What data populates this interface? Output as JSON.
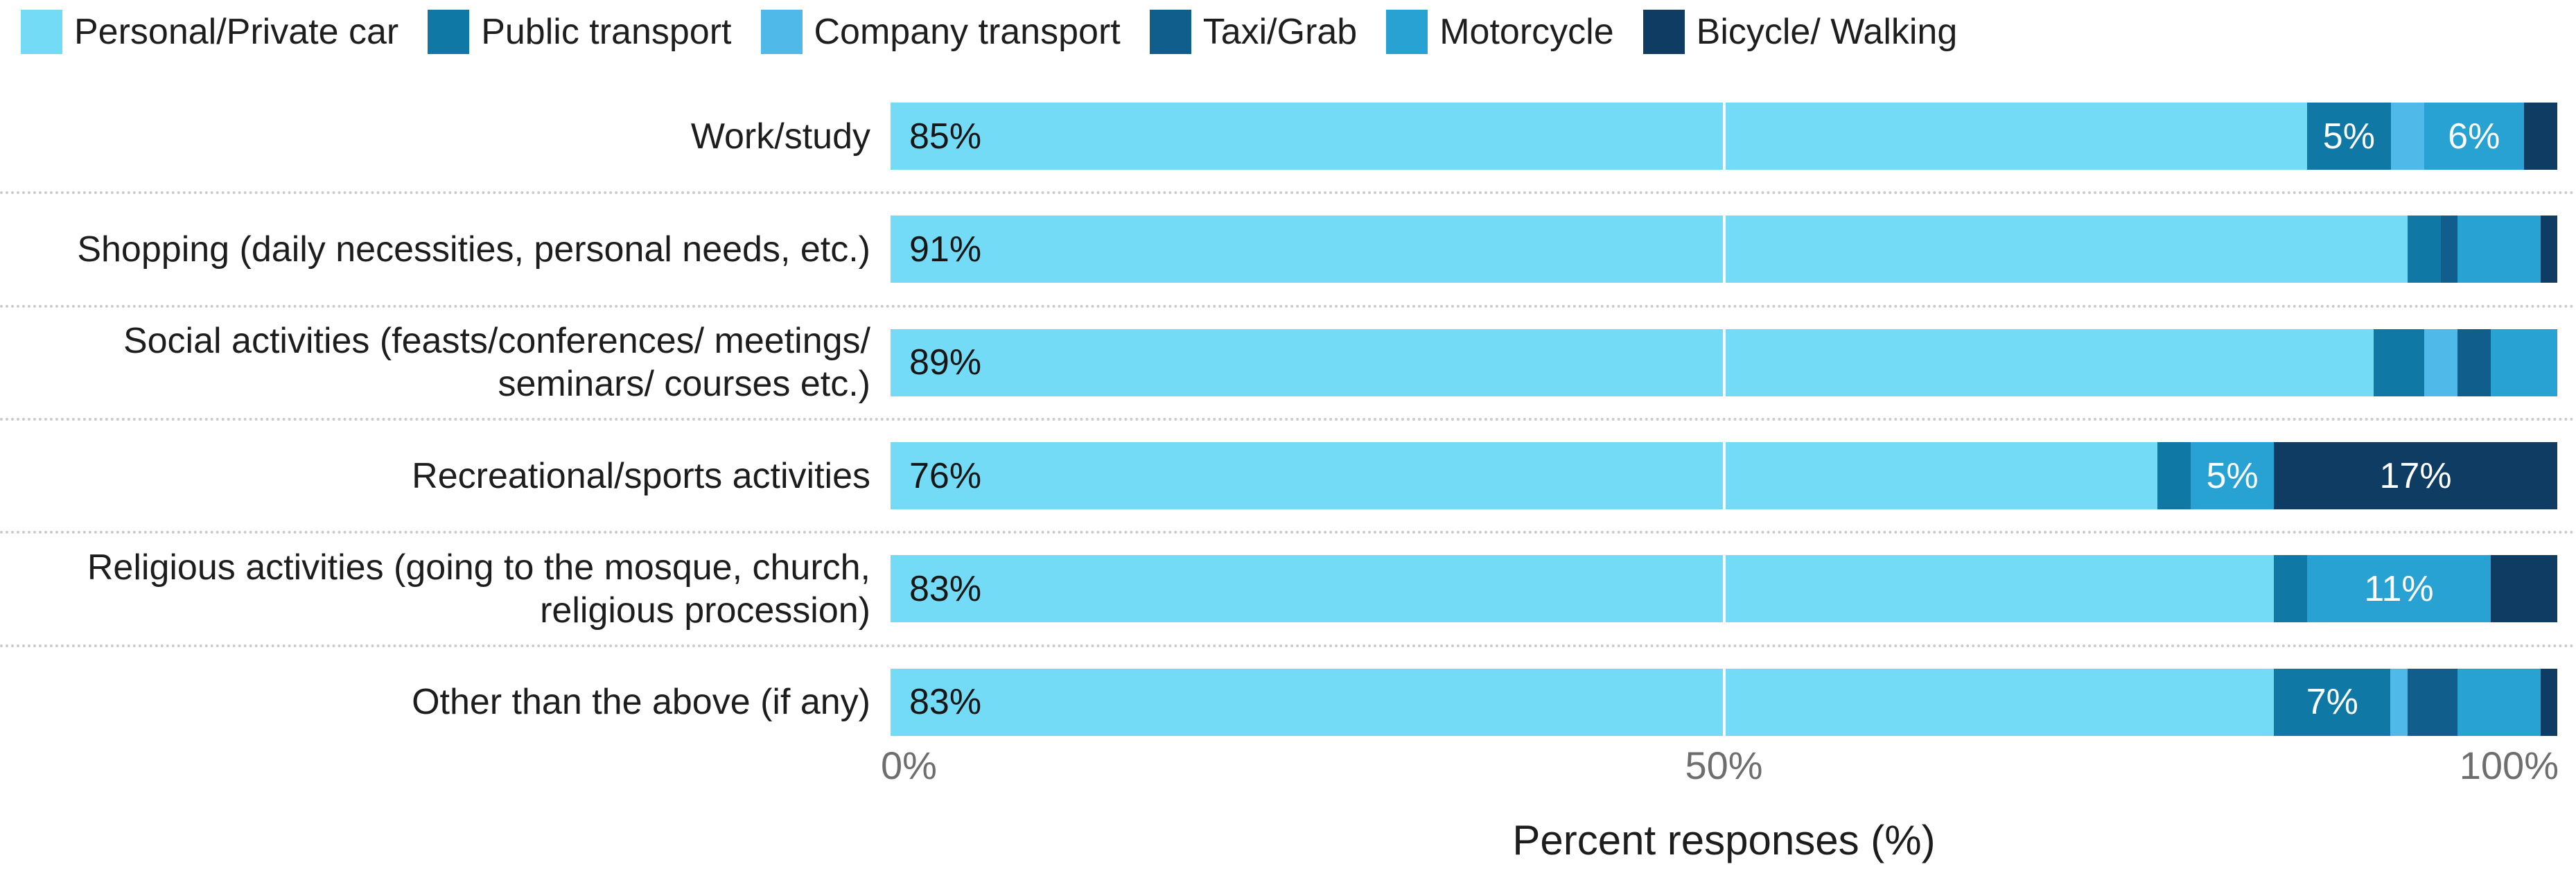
{
  "legend": {
    "position": "top-left",
    "items": [
      {
        "key": "personal",
        "label": "Personal/Private car",
        "color": "#74DBF6"
      },
      {
        "key": "public",
        "label": "Public transport",
        "color": "#1078A4"
      },
      {
        "key": "company",
        "label": "Company transport",
        "color": "#4FB9EA"
      },
      {
        "key": "taxi",
        "label": "Taxi/Grab",
        "color": "#0F5E8C"
      },
      {
        "key": "motorcycle",
        "label": "Motorcycle",
        "color": "#27A2D2"
      },
      {
        "key": "bicycle",
        "label": "Bicycle/ Walking",
        "color": "#0E3C62"
      }
    ]
  },
  "chart_data": {
    "type": "bar",
    "subtype": "horizontal-stacked-100pct",
    "title": "",
    "xlabel": "Percent responses (%)",
    "ylabel": "",
    "xlim": [
      0,
      100
    ],
    "x_ticks": [
      "0%",
      "50%",
      "100%"
    ],
    "grid": "white line at 50% over bars; dotted gray row separators",
    "legend_position": "top",
    "categories": [
      "Work/study",
      "Shopping (daily necessities, personal needs, etc.)",
      "Social activities (feasts/conferences/ meetings/\nseminars/ courses etc.)",
      "Recreational/sports activities",
      "Religious activities (going to the mosque, church,\nreligious procession)",
      "Other than the above (if any)"
    ],
    "series": [
      {
        "key": "personal",
        "name": "Personal/Private car",
        "color": "#74DBF6",
        "values": [
          85,
          91,
          89,
          76,
          83,
          83
        ],
        "labels": [
          "85%",
          "91%",
          "89%",
          "76%",
          "83%",
          "83%"
        ]
      },
      {
        "key": "public",
        "name": "Public transport",
        "color": "#1078A4",
        "values": [
          5,
          2,
          3,
          2,
          2,
          7
        ],
        "labels": [
          "5%",
          null,
          null,
          null,
          null,
          "7%"
        ]
      },
      {
        "key": "company",
        "name": "Company transport",
        "color": "#4FB9EA",
        "values": [
          2,
          0,
          2,
          0,
          0,
          1
        ],
        "labels": [
          null,
          null,
          null,
          null,
          null,
          null
        ]
      },
      {
        "key": "taxi",
        "name": "Taxi/Grab",
        "color": "#0F5E8C",
        "values": [
          0,
          1,
          2,
          0,
          0,
          3
        ],
        "labels": [
          null,
          null,
          null,
          null,
          null,
          null
        ]
      },
      {
        "key": "motorcycle",
        "name": "Motorcycle",
        "color": "#27A2D2",
        "values": [
          6,
          5,
          4,
          5,
          11,
          5
        ],
        "labels": [
          "6%",
          null,
          null,
          "5%",
          "11%",
          null
        ]
      },
      {
        "key": "bicycle",
        "name": "Bicycle/ Walking",
        "color": "#0E3C62",
        "values": [
          2,
          1,
          0,
          17,
          4,
          1
        ],
        "labels": [
          null,
          null,
          null,
          "17%",
          null,
          null
        ]
      }
    ],
    "value_label_colors": {
      "on_light_segment": "#161616",
      "on_dark_segment": "#FFFFFF"
    }
  },
  "axis": {
    "ticks": [
      "0%",
      "50%",
      "100%"
    ],
    "title": "Percent responses (%)"
  }
}
